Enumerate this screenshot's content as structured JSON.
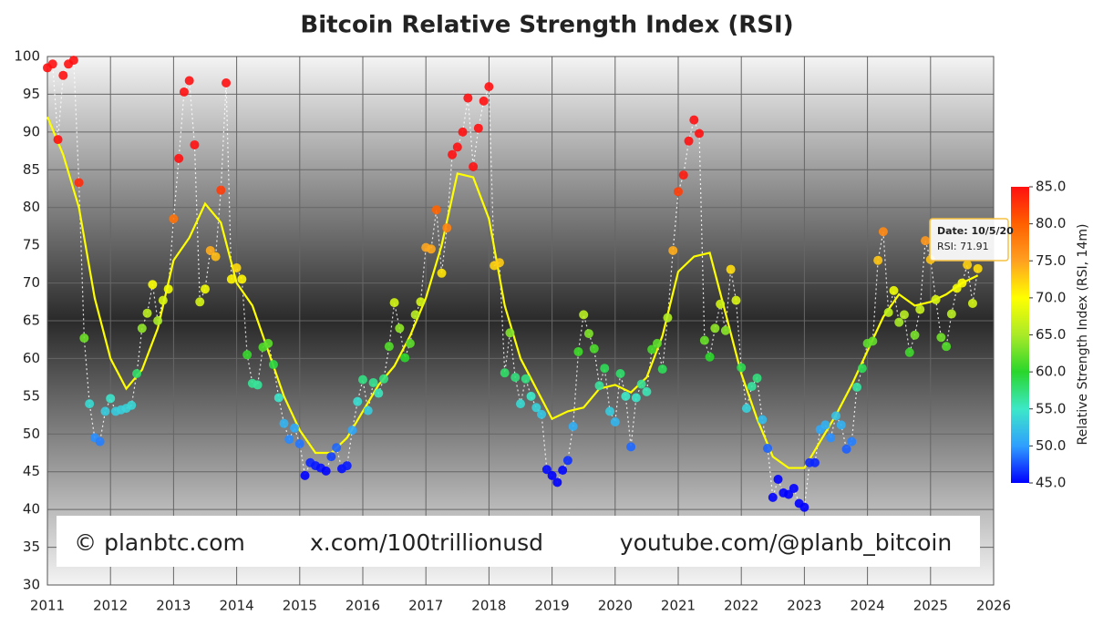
{
  "chart_data": {
    "type": "scatter",
    "title": "Bitcoin Relative Strength Index (RSI)",
    "xlim": [
      2011,
      2026
    ],
    "xticks": [
      2011,
      2012,
      2013,
      2014,
      2015,
      2016,
      2017,
      2018,
      2019,
      2020,
      2021,
      2022,
      2023,
      2024,
      2025,
      2026
    ],
    "ylim": [
      30,
      100
    ],
    "yticks": [
      30,
      35,
      40,
      45,
      50,
      55,
      60,
      65,
      70,
      75,
      80,
      85,
      90,
      95,
      100
    ],
    "grid": true,
    "x": [
      2011,
      2011.083,
      2011.167,
      2011.25,
      2011.333,
      2011.417,
      2011.5,
      2011.583,
      2011.667,
      2011.75,
      2011.833,
      2011.917,
      2012,
      2012.083,
      2012.167,
      2012.25,
      2012.333,
      2012.417,
      2012.5,
      2012.583,
      2012.667,
      2012.75,
      2012.833,
      2012.917,
      2013,
      2013.083,
      2013.167,
      2013.25,
      2013.333,
      2013.417,
      2013.5,
      2013.583,
      2013.667,
      2013.75,
      2013.833,
      2013.917,
      2014,
      2014.083,
      2014.167,
      2014.25,
      2014.333,
      2014.417,
      2014.5,
      2014.583,
      2014.667,
      2014.75,
      2014.833,
      2014.917,
      2015,
      2015.083,
      2015.167,
      2015.25,
      2015.333,
      2015.417,
      2015.5,
      2015.583,
      2015.667,
      2015.75,
      2015.833,
      2015.917,
      2016,
      2016.083,
      2016.167,
      2016.25,
      2016.333,
      2016.417,
      2016.5,
      2016.583,
      2016.667,
      2016.75,
      2016.833,
      2016.917,
      2017,
      2017.083,
      2017.167,
      2017.25,
      2017.333,
      2017.417,
      2017.5,
      2017.583,
      2017.667,
      2017.75,
      2017.833,
      2017.917,
      2018,
      2018.083,
      2018.167,
      2018.25,
      2018.333,
      2018.417,
      2018.5,
      2018.583,
      2018.667,
      2018.75,
      2018.833,
      2018.917,
      2019,
      2019.083,
      2019.167,
      2019.25,
      2019.333,
      2019.417,
      2019.5,
      2019.583,
      2019.667,
      2019.75,
      2019.833,
      2019.917,
      2020,
      2020.083,
      2020.167,
      2020.25,
      2020.333,
      2020.417,
      2020.5,
      2020.583,
      2020.667,
      2020.75,
      2020.833,
      2020.917,
      2021,
      2021.083,
      2021.167,
      2021.25,
      2021.333,
      2021.417,
      2021.5,
      2021.583,
      2021.667,
      2021.75,
      2021.833,
      2021.917,
      2022,
      2022.083,
      2022.167,
      2022.25,
      2022.333,
      2022.417,
      2022.5,
      2022.583,
      2022.667,
      2022.75,
      2022.833,
      2022.917,
      2023,
      2023.083,
      2023.167,
      2023.25,
      2023.333,
      2023.417,
      2023.5,
      2023.583,
      2023.667,
      2023.75,
      2023.833,
      2023.917,
      2024,
      2024.083,
      2024.167,
      2024.25,
      2024.333,
      2024.417,
      2024.5,
      2024.583,
      2024.667,
      2024.75,
      2024.833,
      2024.917,
      2025,
      2025.083,
      2025.167,
      2025.25,
      2025.333,
      2025.417,
      2025.5,
      2025.583,
      2025.667,
      2025.75
    ],
    "values": [
      98.5,
      99,
      89,
      97.5,
      99,
      99.5,
      83.3,
      62.7,
      54,
      49.5,
      49,
      53,
      54.7,
      53,
      53.2,
      53.4,
      53.8,
      58,
      64,
      66,
      69.8,
      65,
      67.7,
      69.2,
      78.5,
      86.5,
      95.3,
      96.8,
      88.3,
      67.5,
      69.2,
      74.3,
      73.5,
      82.3,
      96.5,
      70.5,
      72,
      70.5,
      60.5,
      56.7,
      56.5,
      61.5,
      62,
      59.2,
      54.8,
      51.4,
      49.3,
      50.8,
      48.7,
      44.5,
      46.2,
      45.8,
      45.5,
      45.1,
      47,
      48.2,
      45.4,
      45.8,
      50.5,
      54.3,
      57.2,
      53.1,
      56.8,
      55.4,
      57.3,
      61.6,
      67.4,
      64,
      60.1,
      62,
      65.8,
      67.5,
      74.7,
      74.5,
      79.7,
      71.3,
      77.3,
      87,
      88,
      90,
      94.5,
      85.4,
      90.5,
      94.1,
      96,
      72.3,
      72.7,
      58.1,
      63.4,
      57.5,
      54,
      57.3,
      55,
      53.5,
      52.6,
      45.3,
      44.5,
      43.6,
      45.2,
      46.5,
      51,
      60.9,
      65.8,
      63.3,
      61.3,
      56.4,
      58.7,
      53,
      51.6,
      58,
      55,
      48.3,
      54.8,
      56.6,
      55.6,
      61.2,
      62,
      58.6,
      65.4,
      74.3,
      82.1,
      84.3,
      88.8,
      91.6,
      89.8,
      62.4,
      60.2,
      64,
      67.2,
      63.7,
      71.8,
      67.7,
      58.8,
      53.4,
      56.3,
      57.4,
      51.9,
      48.1,
      41.6,
      44,
      42.2,
      42,
      42.8,
      40.8,
      40.3,
      46.2,
      46.2,
      50.6,
      51.2,
      49.5,
      52.4,
      51.2,
      48,
      49,
      56.2,
      58.7,
      62,
      62.3,
      73,
      76.8,
      66.1,
      69,
      64.8,
      65.8,
      60.8,
      63.1,
      66.5,
      75.6,
      73.1,
      67.8,
      62.8,
      61.6,
      65.9,
      69.3,
      70,
      72.4,
      67.3,
      71.9
    ],
    "line": {
      "color": "#ffff00",
      "x": [
        2011,
        2011.25,
        2011.5,
        2011.75,
        2012,
        2012.25,
        2012.5,
        2012.75,
        2013,
        2013.25,
        2013.5,
        2013.75,
        2014,
        2014.25,
        2014.5,
        2014.75,
        2015,
        2015.25,
        2015.5,
        2015.75,
        2016,
        2016.25,
        2016.5,
        2016.75,
        2017,
        2017.25,
        2017.5,
        2017.75,
        2018,
        2018.25,
        2018.5,
        2018.75,
        2019,
        2019.25,
        2019.5,
        2019.75,
        2020,
        2020.25,
        2020.5,
        2020.75,
        2021,
        2021.25,
        2021.5,
        2021.75,
        2022,
        2022.25,
        2022.5,
        2022.75,
        2023,
        2023.25,
        2023.5,
        2023.75,
        2024,
        2024.25,
        2024.5,
        2024.75,
        2025,
        2025.25,
        2025.5,
        2025.75
      ],
      "values": [
        92,
        87,
        80,
        68,
        60,
        56,
        58.5,
        64,
        73,
        76,
        80.5,
        78,
        70,
        67,
        61,
        55,
        50.5,
        47.5,
        47.5,
        49.5,
        53,
        56.5,
        59,
        63,
        68,
        75,
        84.5,
        84,
        78.5,
        67,
        60,
        56,
        52,
        53,
        53.5,
        56,
        56.5,
        55.5,
        57.5,
        63,
        71.5,
        73.5,
        74,
        66,
        58,
        52,
        47,
        45.5,
        45.5,
        49,
        52.5,
        56.5,
        61,
        65.5,
        68.5,
        67,
        67.5,
        68.5,
        70,
        71
      ]
    },
    "colorbar": {
      "label": "Relative Strength Index (RSI, 14m)",
      "range": [
        45,
        85
      ],
      "colors": [
        "#0000ff",
        "#2f9fff",
        "#3de8c8",
        "#29d62c",
        "#aaea28",
        "#ffff00",
        "#ffa020",
        "#ff6000",
        "#ff1010"
      ],
      "ticks": [
        {
          "value": 45,
          "label": "45.0"
        },
        {
          "value": 50,
          "label": "50.0"
        },
        {
          "value": 55,
          "label": "55.0"
        },
        {
          "value": 60,
          "label": "60.0"
        },
        {
          "value": 65,
          "label": "65.0"
        },
        {
          "value": 70,
          "label": "70.0"
        },
        {
          "value": 75,
          "label": "75.0"
        },
        {
          "value": 80,
          "label": "80.0"
        },
        {
          "value": 85,
          "label": "85.0"
        }
      ]
    },
    "tooltip": {
      "date": "Date: 10/5/20",
      "value": "RSI: 71.91"
    },
    "watermark": [
      "© planbtc.com",
      "x.com/100trillionusd",
      "youtube.com/@planb_bitcoin"
    ]
  }
}
